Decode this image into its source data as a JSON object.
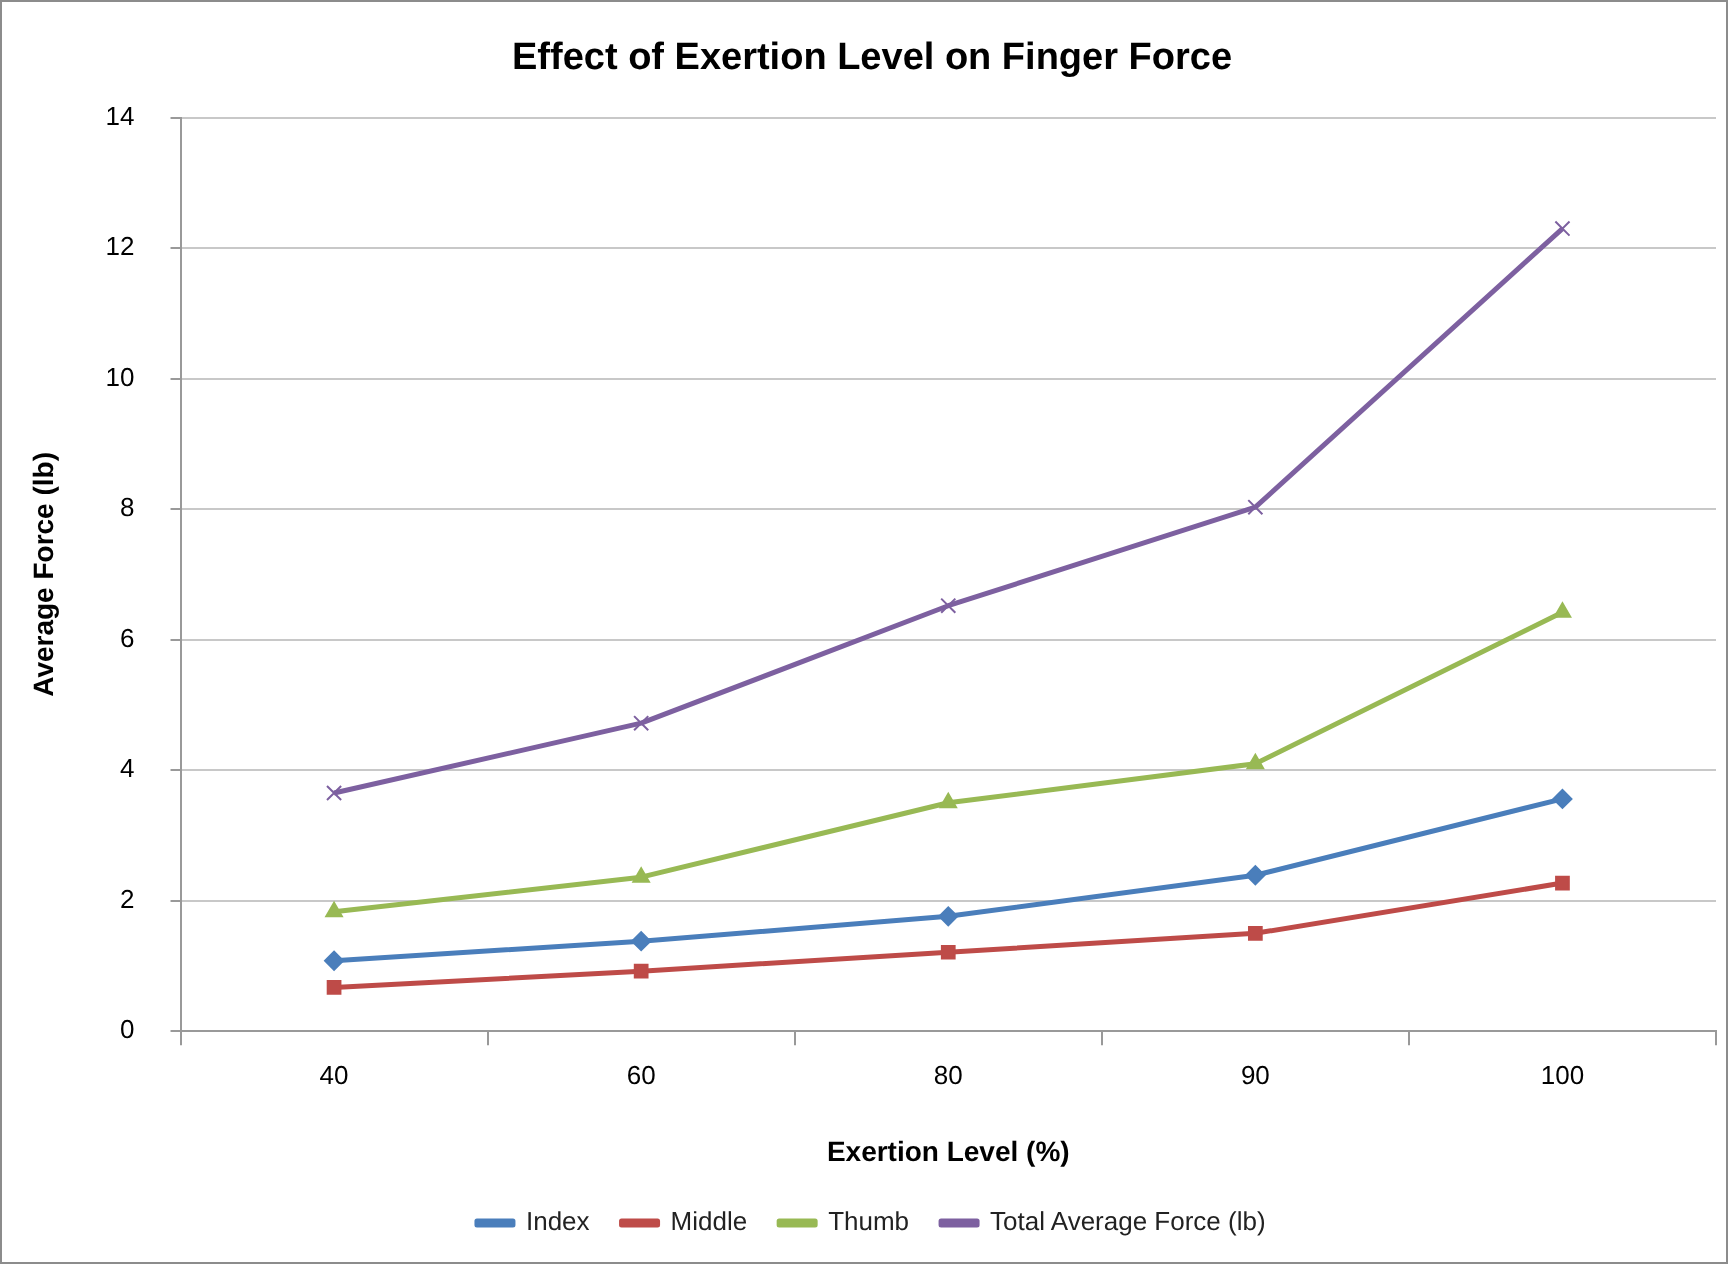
{
  "chart_data": {
    "type": "line",
    "title": "Effect of Exertion Level on Finger Force",
    "xlabel": "Exertion Level (%)",
    "ylabel": "Average Force (lb)",
    "categories": [
      "40",
      "60",
      "80",
      "90",
      "100"
    ],
    "series": [
      {
        "name": "Index",
        "color": "#4a7ebb",
        "marker": "diamond",
        "values": [
          1.08,
          1.38,
          1.76,
          2.39,
          3.56
        ]
      },
      {
        "name": "Middle",
        "color": "#be4b48",
        "marker": "square",
        "values": [
          0.67,
          0.92,
          1.21,
          1.5,
          2.27
        ]
      },
      {
        "name": "Thumb",
        "color": "#98b954",
        "marker": "triangle",
        "values": [
          1.83,
          2.36,
          3.5,
          4.1,
          6.42
        ]
      },
      {
        "name": "Total Average Force (lb)",
        "color": "#7d60a0",
        "marker": "cross",
        "values": [
          3.65,
          4.72,
          6.52,
          8.03,
          12.3
        ]
      }
    ],
    "ylim": [
      0,
      14
    ],
    "yticks": [
      0,
      2,
      4,
      6,
      8,
      10,
      12,
      14
    ],
    "grid": "y",
    "legend": "bottom",
    "line_style": "solid"
  }
}
